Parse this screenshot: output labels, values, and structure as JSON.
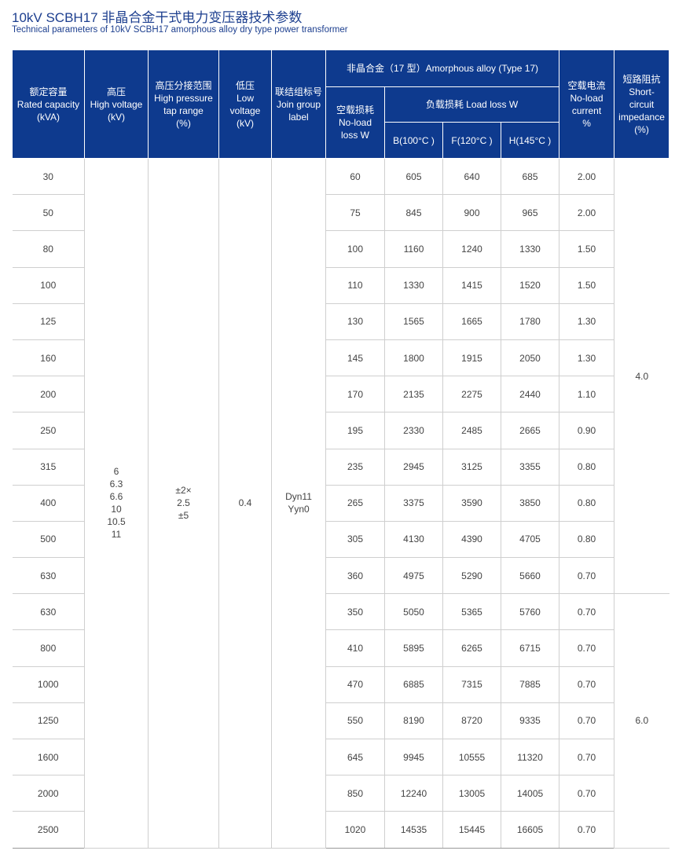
{
  "title": "10kV  SCBH17  非晶合金干式电力变压器技术参数",
  "subtitle": "Technical parameters of 10kV SCBH17 amorphous alloy dry type power transformer",
  "headers": {
    "rated_capacity": "额定容量\nRated capacity\n(kVA)",
    "high_voltage": "高压\nHigh voltage\n(kV)",
    "tap_range": "高压分接范围\nHigh pressure\ntap range\n(%)",
    "low_voltage": "低压\nLow\nvoltage\n(kV)",
    "join_group": "联结组标号\nJoin group\nlabel",
    "amorphous": "非晶合金（17 型）Amorphous alloy (Type 17)",
    "no_load_loss": "空载损耗\nNo-load\nloss  W",
    "load_loss": "负载损耗 Load loss W",
    "b": "B(100°C )",
    "f": "F(120°C )",
    "h": "H(145°C )",
    "no_load_current": "空载电流\nNo-load\ncurrent\n%",
    "impedance": "短路阻抗\nShort-\ncircuit\nimpedance\n(%)"
  },
  "merged": {
    "high_voltage": "6\n6.3\n6.6\n10\n10.5\n11",
    "tap_range": "±2×\n2.5\n±5",
    "low_voltage": "0.4",
    "join_group": "Dyn11\nYyn0",
    "impedance_group1": "4.0",
    "impedance_group2": "6.0"
  },
  "rows": [
    [
      "30",
      "60",
      "605",
      "640",
      "685",
      "2.00"
    ],
    [
      "50",
      "75",
      "845",
      "900",
      "965",
      "2.00"
    ],
    [
      "80",
      "100",
      "1160",
      "1240",
      "1330",
      "1.50"
    ],
    [
      "100",
      "110",
      "1330",
      "1415",
      "1520",
      "1.50"
    ],
    [
      "125",
      "130",
      "1565",
      "1665",
      "1780",
      "1.30"
    ],
    [
      "160",
      "145",
      "1800",
      "1915",
      "2050",
      "1.30"
    ],
    [
      "200",
      "170",
      "2135",
      "2275",
      "2440",
      "1.10"
    ],
    [
      "250",
      "195",
      "2330",
      "2485",
      "2665",
      "0.90"
    ],
    [
      "315",
      "235",
      "2945",
      "3125",
      "3355",
      "0.80"
    ],
    [
      "400",
      "265",
      "3375",
      "3590",
      "3850",
      "0.80"
    ],
    [
      "500",
      "305",
      "4130",
      "4390",
      "4705",
      "0.80"
    ],
    [
      "630",
      "360",
      "4975",
      "5290",
      "5660",
      "0.70"
    ],
    [
      "630",
      "350",
      "5050",
      "5365",
      "5760",
      "0.70"
    ],
    [
      "800",
      "410",
      "5895",
      "6265",
      "6715",
      "0.70"
    ],
    [
      "1000",
      "470",
      "6885",
      "7315",
      "7885",
      "0.70"
    ],
    [
      "1250",
      "550",
      "8190",
      "8720",
      "9335",
      "0.70"
    ],
    [
      "1600",
      "645",
      "9945",
      "10555",
      "11320",
      "0.70"
    ],
    [
      "2000",
      "850",
      "12240",
      "13005",
      "14005",
      "0.70"
    ],
    [
      "2500",
      "1020",
      "14535",
      "15445",
      "16605",
      "0.70"
    ]
  ],
  "colors": {
    "header_bg": "#0e3a8e",
    "title": "#1d3f8f"
  }
}
